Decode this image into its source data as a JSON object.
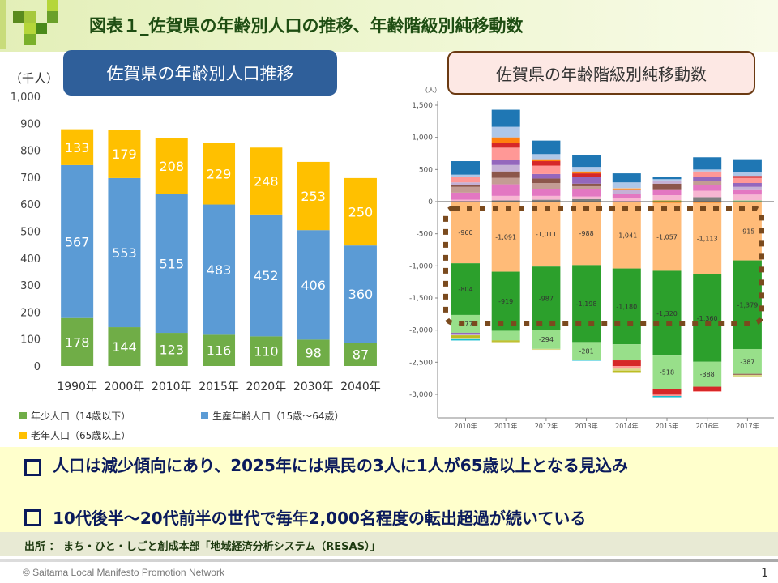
{
  "title": "図表１_佐賀県の年齢別人口の推移、年齢階級別純移動数",
  "left_panel_title": "佐賀県の年齢別人口推移",
  "right_panel_title": "佐賀県の年齢階級別純移動数",
  "chart_data": [
    {
      "type": "bar",
      "stacked": true,
      "ylabel": "（千人）",
      "ylim": [
        0,
        1000
      ],
      "yticks": [
        "0",
        "100",
        "200",
        "300",
        "400",
        "500",
        "600",
        "700",
        "800",
        "900",
        "1,000"
      ],
      "categories": [
        "1990年",
        "2000年",
        "2010年",
        "2015年",
        "2020年",
        "2030年",
        "2040年"
      ],
      "series": [
        {
          "name": "年少人口（14歳以下）",
          "color": "#70ad47",
          "values": [
            178,
            144,
            123,
            116,
            110,
            98,
            87
          ]
        },
        {
          "name": "生産年齢人口（15歳～64歳）",
          "color": "#5b9bd5",
          "values": [
            567,
            553,
            515,
            483,
            452,
            406,
            360
          ]
        },
        {
          "name": "老年人口（65歳以上）",
          "color": "#ffc000",
          "values": [
            133,
            179,
            208,
            229,
            248,
            253,
            250
          ]
        }
      ],
      "legend": "bottom"
    },
    {
      "type": "bar",
      "stacked": true,
      "ylabel": "（人）",
      "ylim": [
        -3300,
        1600
      ],
      "yticks": [
        1500,
        1000,
        500,
        0,
        -500,
        -1000,
        -1500,
        -2000,
        -2500,
        -3000
      ],
      "ytick_labels": [
        "1,500",
        "1,000",
        "500",
        "0",
        "-500",
        "-1,000",
        "-1,500",
        "-2,000",
        "-2,500",
        "-3,000"
      ],
      "categories": [
        "2010年",
        "2011年",
        "2012年",
        "2013年",
        "2014年",
        "2015年",
        "2016年",
        "2017年"
      ],
      "positive": [
        [
          [
            30,
            "#f7b6d2"
          ],
          [
            110,
            "#e377c2"
          ],
          [
            90,
            "#c49c94"
          ],
          [
            30,
            "#8c564b"
          ],
          [
            40,
            "#c5b0d5"
          ],
          [
            80,
            "#ff9896"
          ],
          [
            40,
            "#aec7e8"
          ],
          [
            210,
            "#1f77b4"
          ]
        ],
        [
          [
            20,
            "#7f7f7f"
          ],
          [
            70,
            "#f7b6d2"
          ],
          [
            180,
            "#e377c2"
          ],
          [
            100,
            "#c49c94"
          ],
          [
            100,
            "#8c564b"
          ],
          [
            100,
            "#c5b0d5"
          ],
          [
            80,
            "#9467bd"
          ],
          [
            190,
            "#ff9896"
          ],
          [
            80,
            "#d62728"
          ],
          [
            80,
            "#ff7f0e"
          ],
          [
            165,
            "#aec7e8"
          ],
          [
            265,
            "#1f77b4"
          ]
        ],
        [
          [
            30,
            "#7f7f7f"
          ],
          [
            60,
            "#f7b6d2"
          ],
          [
            110,
            "#e377c2"
          ],
          [
            90,
            "#c49c94"
          ],
          [
            70,
            "#8c564b"
          ],
          [
            70,
            "#9467bd"
          ],
          [
            130,
            "#ff9896"
          ],
          [
            70,
            "#d62728"
          ],
          [
            30,
            "#ff7f0e"
          ],
          [
            80,
            "#aec7e8"
          ],
          [
            210,
            "#1f77b4"
          ]
        ],
        [
          [
            40,
            "#7f7f7f"
          ],
          [
            40,
            "#f7b6d2"
          ],
          [
            110,
            "#e377c2"
          ],
          [
            50,
            "#c49c94"
          ],
          [
            40,
            "#8c564b"
          ],
          [
            110,
            "#9467bd"
          ],
          [
            50,
            "#d62728"
          ],
          [
            30,
            "#ff7f0e"
          ],
          [
            70,
            "#aec7e8"
          ],
          [
            190,
            "#1f77b4"
          ]
        ],
        [
          [
            60,
            "#f7b6d2"
          ],
          [
            60,
            "#e377c2"
          ],
          [
            60,
            "#c5b0d5"
          ],
          [
            10,
            "#ff7f0e"
          ],
          [
            20,
            "#ffbb78"
          ],
          [
            90,
            "#aec7e8"
          ],
          [
            140,
            "#1f77b4"
          ]
        ],
        [
          [
            20,
            "#bcbd22"
          ],
          [
            80,
            "#f7b6d2"
          ],
          [
            80,
            "#e377c2"
          ],
          [
            100,
            "#8c564b"
          ],
          [
            50,
            "#c5b0d5"
          ],
          [
            20,
            "#aec7e8"
          ],
          [
            40,
            "#1f77b4"
          ]
        ],
        [
          [
            70,
            "#7f7f7f"
          ],
          [
            100,
            "#f7b6d2"
          ],
          [
            90,
            "#e377c2"
          ],
          [
            60,
            "#c49c94"
          ],
          [
            60,
            "#9467bd"
          ],
          [
            90,
            "#ff9896"
          ],
          [
            30,
            "#aec7e8"
          ],
          [
            190,
            "#1f77b4"
          ]
        ],
        [
          [
            20,
            "#98df8a"
          ],
          [
            90,
            "#f7b6d2"
          ],
          [
            70,
            "#e377c2"
          ],
          [
            50,
            "#c5b0d5"
          ],
          [
            60,
            "#9467bd"
          ],
          [
            80,
            "#ff9896"
          ],
          [
            30,
            "#d62728"
          ],
          [
            60,
            "#aec7e8"
          ],
          [
            200,
            "#1f77b4"
          ]
        ]
      ],
      "negative": [
        [
          [
            -960,
            "#ffbb78",
            "-960"
          ],
          [
            -804,
            "#2ca02c",
            "-804"
          ],
          [
            -277,
            "#98df8a",
            "-277"
          ],
          [
            -20,
            "#9467bd"
          ],
          [
            -20,
            "#c5b0d5"
          ],
          [
            -40,
            "#bcbd22"
          ],
          [
            -20,
            "#dbdb8d"
          ],
          [
            -20,
            "#17becf"
          ]
        ],
        [
          [
            -1091,
            "#ffbb78",
            "-1,091"
          ],
          [
            -919,
            "#2ca02c",
            "-919"
          ],
          [
            -150,
            "#98df8a"
          ],
          [
            -20,
            "#bcbd22"
          ],
          [
            -20,
            "#dbdb8d"
          ]
        ],
        [
          [
            -1011,
            "#ffbb78",
            "-1,011"
          ],
          [
            -987,
            "#2ca02c",
            "-987"
          ],
          [
            -294,
            "#98df8a",
            "-294"
          ],
          [
            -15,
            "#dbdb8d"
          ]
        ],
        [
          [
            -988,
            "#ffbb78",
            "-988"
          ],
          [
            -1198,
            "#2ca02c",
            "-1,198"
          ],
          [
            -281,
            "#98df8a",
            "-281"
          ],
          [
            -10,
            "#17becf"
          ]
        ],
        [
          [
            -1041,
            "#ffbb78",
            "-1,041"
          ],
          [
            -1180,
            "#2ca02c",
            "-1,180"
          ],
          [
            -250,
            "#98df8a"
          ],
          [
            -90,
            "#d62728"
          ],
          [
            -40,
            "#ff9896"
          ],
          [
            -30,
            "#dbdb8d"
          ],
          [
            -20,
            "#bcbd22"
          ],
          [
            -20,
            "#dbdb8d"
          ]
        ],
        [
          [
            -20,
            "#ff7f0e"
          ],
          [
            -1057,
            "#ffbb78",
            "-1,057"
          ],
          [
            -1320,
            "#2ca02c",
            "-1,320"
          ],
          [
            -518,
            "#98df8a",
            "-518"
          ],
          [
            -90,
            "#d62728"
          ],
          [
            -20,
            "#ff9896"
          ],
          [
            -20,
            "#17becf"
          ]
        ],
        [
          [
            -20,
            "#ff7f0e"
          ],
          [
            -1113,
            "#ffbb78",
            "-1,113"
          ],
          [
            -1360,
            "#2ca02c",
            "-1,360"
          ],
          [
            -388,
            "#98df8a",
            "-388"
          ],
          [
            -70,
            "#d62728"
          ],
          [
            -10,
            "#ff9896"
          ]
        ],
        [
          [
            -915,
            "#ffbb78",
            "-915"
          ],
          [
            -1379,
            "#2ca02c",
            "-1,379"
          ],
          [
            -387,
            "#98df8a",
            "-387"
          ],
          [
            -15,
            "#8c564b"
          ],
          [
            -30,
            "#dbdb8d"
          ]
        ]
      ],
      "highlight_color": "#7a4a1e"
    }
  ],
  "summary": {
    "bullet1": "人口は減少傾向にあり、2025年には県民の3人に1人が65歳以上となる見込み",
    "bullet2": "10代後半～20代前半の世代で毎年2,000名程度の転出超過が続いている"
  },
  "source": "出所 ： まち・ひと・しごと創成本部「地域経済分析システム（RESAS）」",
  "copyright": "© Saitama Local Manifesto Promotion Network",
  "page_number": "1"
}
